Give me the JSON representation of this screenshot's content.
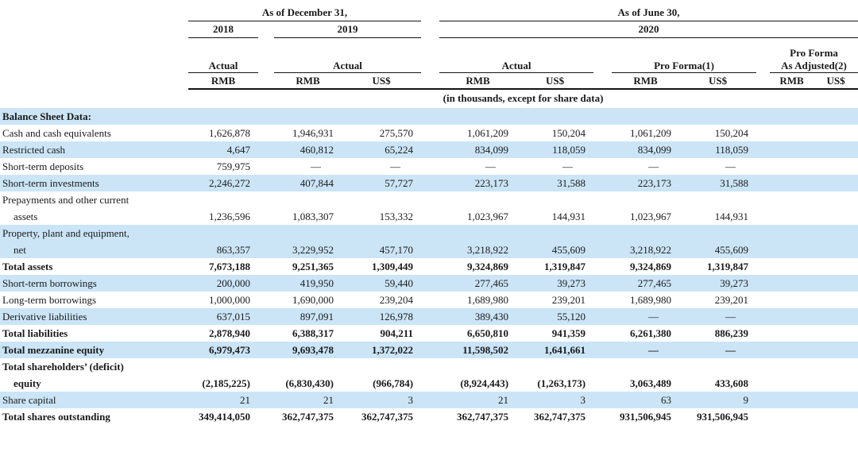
{
  "colors": {
    "stripe": "#cbe5f7",
    "ink": "#1a1a1a",
    "rule": "#141414"
  },
  "table": {
    "header": {
      "period1": "As of December 31,",
      "period2": "As of June 30,",
      "year1": "2018",
      "year2": "2019",
      "year3": "2020",
      "actual1": "Actual",
      "actual2": "Actual",
      "actual3": "Actual",
      "pro_forma": "Pro Forma(1)",
      "pro_forma_adjusted_line1": "Pro Forma",
      "pro_forma_adjusted_line2": "As Adjusted(2)",
      "currencies": [
        "RMB",
        "RMB",
        "US$",
        "RMB",
        "US$",
        "RMB",
        "US$",
        "RMB",
        "US$"
      ],
      "units_note": "(in thousands, except for share data)"
    },
    "rows": [
      {
        "label": "Balance Sheet Data:",
        "bold": true,
        "values": [
          "",
          "",
          "",
          "",
          "",
          "",
          "",
          "",
          ""
        ]
      },
      {
        "label": "Cash and cash equivalents",
        "bold": false,
        "values": [
          "1,626,878",
          "1,946,931",
          "275,570",
          "1,061,209",
          "150,204",
          "1,061,209",
          "150,204",
          "",
          ""
        ]
      },
      {
        "label": "Restricted cash",
        "bold": false,
        "values": [
          "4,647",
          "460,812",
          "65,224",
          "834,099",
          "118,059",
          "834,099",
          "118,059",
          "",
          ""
        ]
      },
      {
        "label": "Short-term deposits",
        "bold": false,
        "values": [
          "759,975",
          "—",
          "—",
          "—",
          "—",
          "—",
          "—",
          "",
          ""
        ]
      },
      {
        "label": "Short-term investments",
        "bold": false,
        "values": [
          "2,246,272",
          "407,844",
          "57,727",
          "223,173",
          "31,588",
          "223,173",
          "31,588",
          "",
          ""
        ]
      },
      {
        "label": "Prepayments and other current",
        "label2": "assets",
        "bold": false,
        "values": [
          "1,236,596",
          "1,083,307",
          "153,332",
          "1,023,967",
          "144,931",
          "1,023,967",
          "144,931",
          "",
          ""
        ]
      },
      {
        "label": "Property, plant and equipment,",
        "label2": "net",
        "bold": false,
        "values": [
          "863,357",
          "3,229,952",
          "457,170",
          "3,218,922",
          "455,609",
          "3,218,922",
          "455,609",
          "",
          ""
        ]
      },
      {
        "label": "Total assets",
        "bold": true,
        "values": [
          "7,673,188",
          "9,251,365",
          "1,309,449",
          "9,324,869",
          "1,319,847",
          "9,324,869",
          "1,319,847",
          "",
          ""
        ]
      },
      {
        "label": "Short-term borrowings",
        "bold": false,
        "values": [
          "200,000",
          "419,950",
          "59,440",
          "277,465",
          "39,273",
          "277,465",
          "39,273",
          "",
          ""
        ]
      },
      {
        "label": "Long-term borrowings",
        "bold": false,
        "values": [
          "1,000,000",
          "1,690,000",
          "239,204",
          "1,689,980",
          "239,201",
          "1,689,980",
          "239,201",
          "",
          ""
        ]
      },
      {
        "label": "Derivative liabilities",
        "bold": false,
        "values": [
          "637,015",
          "897,091",
          "126,978",
          "389,430",
          "55,120",
          "—",
          "—",
          "",
          ""
        ]
      },
      {
        "label": "Total liabilities",
        "bold": true,
        "values": [
          "2,878,940",
          "6,388,317",
          "904,211",
          "6,650,810",
          "941,359",
          "6,261,380",
          "886,239",
          "",
          ""
        ]
      },
      {
        "label": "Total mezzanine equity",
        "bold": true,
        "values": [
          "6,979,473",
          "9,693,478",
          "1,372,022",
          "11,598,502",
          "1,641,661",
          "—",
          "—",
          "",
          ""
        ]
      },
      {
        "label": "Total shareholders’ (deficit)",
        "label2": "equity",
        "bold": true,
        "values": [
          "(2,185,225)",
          "(6,830,430)",
          "(966,784)",
          "(8,924,443)",
          "(1,263,173)",
          "3,063,489",
          "433,608",
          "",
          ""
        ]
      },
      {
        "label": "Share capital",
        "bold": false,
        "values": [
          "21",
          "21",
          "3",
          "21",
          "3",
          "63",
          "9",
          "",
          ""
        ]
      },
      {
        "label": "Total shares outstanding",
        "bold": true,
        "values": [
          "349,414,050",
          "362,747,375",
          "362,747,375",
          "362,747,375",
          "362,747,375",
          "931,506,945",
          "931,506,945",
          "",
          ""
        ]
      }
    ]
  }
}
